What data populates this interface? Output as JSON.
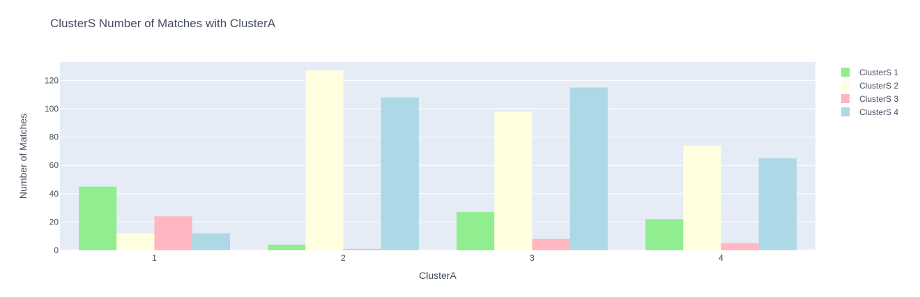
{
  "chart_data": {
    "type": "bar",
    "title": "ClusterS Number of Matches with ClusterA",
    "xlabel": "ClusterA",
    "ylabel": "Number of Matches",
    "categories": [
      "1",
      "2",
      "3",
      "4"
    ],
    "ylim": [
      0,
      133
    ],
    "yticks": [
      0,
      20,
      40,
      60,
      80,
      100,
      120
    ],
    "grid": true,
    "legend_position": "top-right",
    "series": [
      {
        "name": "ClusterS 1",
        "color": "#90ee90",
        "values": [
          45,
          4,
          27,
          22
        ]
      },
      {
        "name": "ClusterS 2",
        "color": "#ffffe0",
        "values": [
          12,
          127,
          98,
          74
        ]
      },
      {
        "name": "ClusterS 3",
        "color": "#ffb6c1",
        "values": [
          24,
          1,
          8,
          5
        ]
      },
      {
        "name": "ClusterS 4",
        "color": "#add8e6",
        "values": [
          12,
          108,
          115,
          65
        ]
      }
    ],
    "colors": {
      "plot_bg": "#e5ecf6",
      "grid": "#ffffff",
      "text": "#444c5e"
    }
  }
}
